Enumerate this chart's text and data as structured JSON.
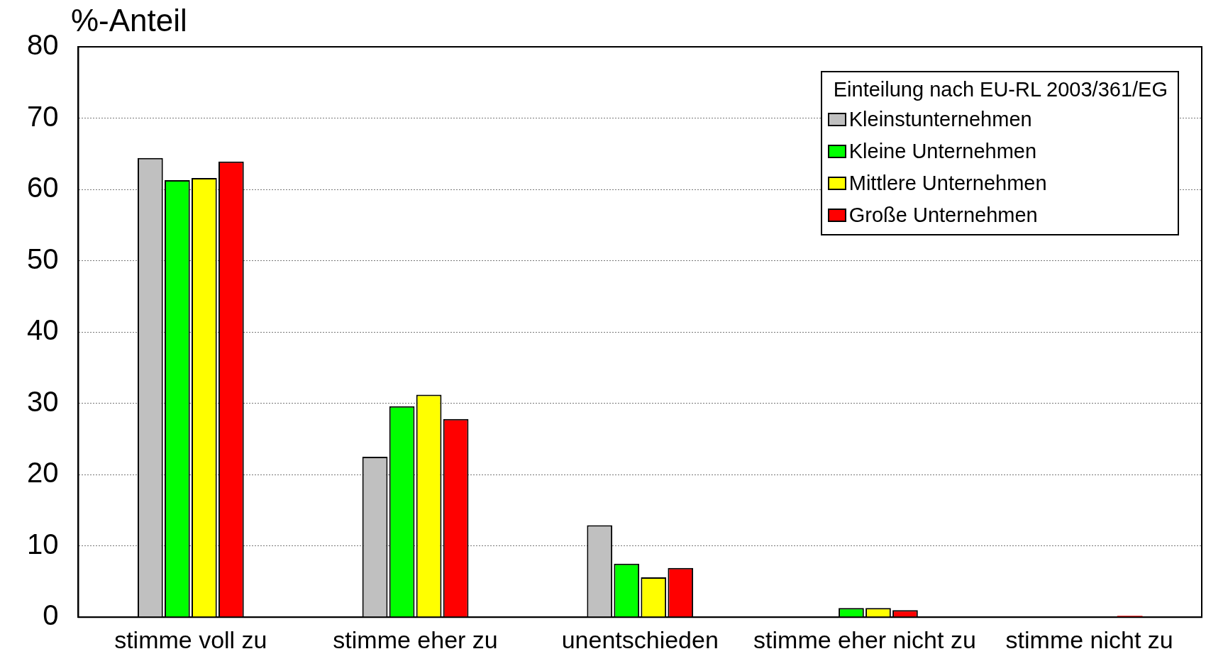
{
  "chart_data": {
    "type": "bar",
    "ylabel": "%-Anteil",
    "legend_title": "Einteilung nach EU-RL 2003/361/EG",
    "categories": [
      "stimme voll zu",
      "stimme eher zu",
      "unentschieden",
      "stimme eher nicht zu",
      "stimme nicht zu"
    ],
    "series": [
      {
        "name": "Kleinstunternehmen",
        "color": "#c0c0c0",
        "values": [
          64.4,
          22.5,
          12.9,
          0,
          0
        ]
      },
      {
        "name": "Kleine Unternehmen",
        "color": "#00ff00",
        "values": [
          61.3,
          29.6,
          7.5,
          1.3,
          0
        ]
      },
      {
        "name": "Mittlere Unternehmen",
        "color": "#ffff00",
        "values": [
          61.6,
          31.2,
          5.6,
          1.3,
          0
        ]
      },
      {
        "name": "Große Unternehmen",
        "color": "#ff0000",
        "values": [
          63.9,
          27.8,
          6.9,
          1.0,
          0.2
        ]
      }
    ],
    "ylim": [
      0,
      80
    ],
    "yticks": [
      0,
      10,
      20,
      30,
      40,
      50,
      60,
      70,
      80
    ],
    "grid": "y",
    "legend": "top right"
  }
}
